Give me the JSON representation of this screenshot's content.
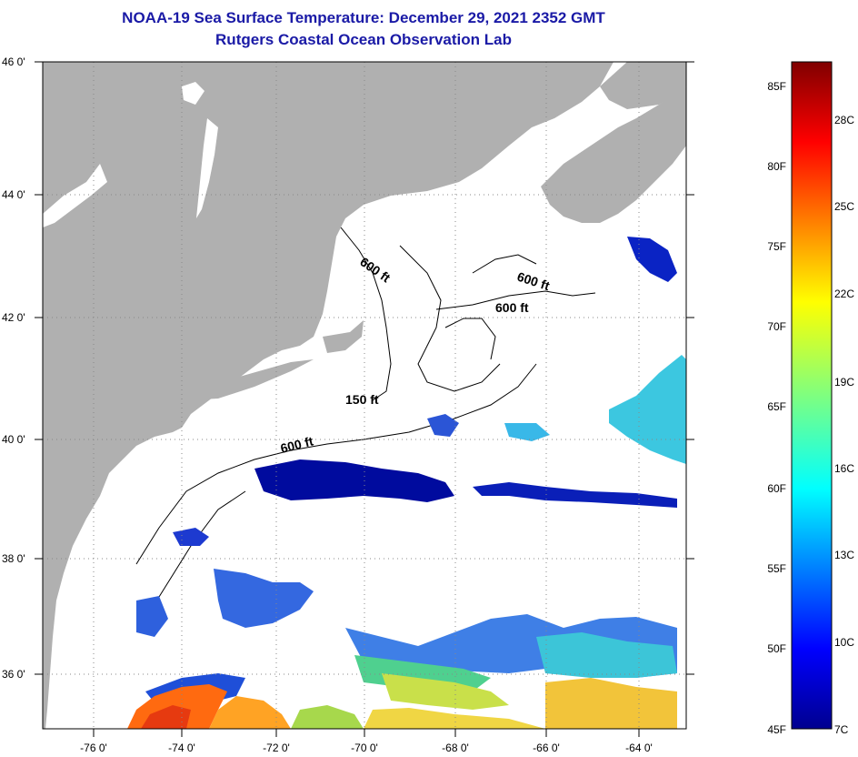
{
  "header": {
    "title": "NOAA-19 Sea Surface Temperature:  December 29, 2021 2352 GMT",
    "subtitle": "Rutgers Coastal Ocean Observation Lab"
  },
  "map": {
    "lat_labels": [
      "46 0'",
      "44 0'",
      "42 0'",
      "40 0'",
      "38 0'",
      "36 0'"
    ],
    "lon_labels": [
      "-76 0'",
      "-74 0'",
      "-72 0'",
      "-70 0'",
      "-68 0'",
      "-66 0'",
      "-64 0'"
    ],
    "contour_labels": [
      "600 ft",
      "600 ft",
      "600 ft",
      "150 ft",
      "600 ft"
    ],
    "colors": {
      "land": "#b0b0b0",
      "water": "#ffffff",
      "title": "#1a1aa6"
    }
  },
  "colorbar": {
    "fahrenheit_labels": [
      "85F",
      "80F",
      "75F",
      "70F",
      "65F",
      "60F",
      "55F",
      "50F",
      "45F"
    ],
    "celsius_labels": [
      "28C",
      "25C",
      "22C",
      "19C",
      "16C",
      "13C",
      "10C",
      "7C"
    ]
  }
}
